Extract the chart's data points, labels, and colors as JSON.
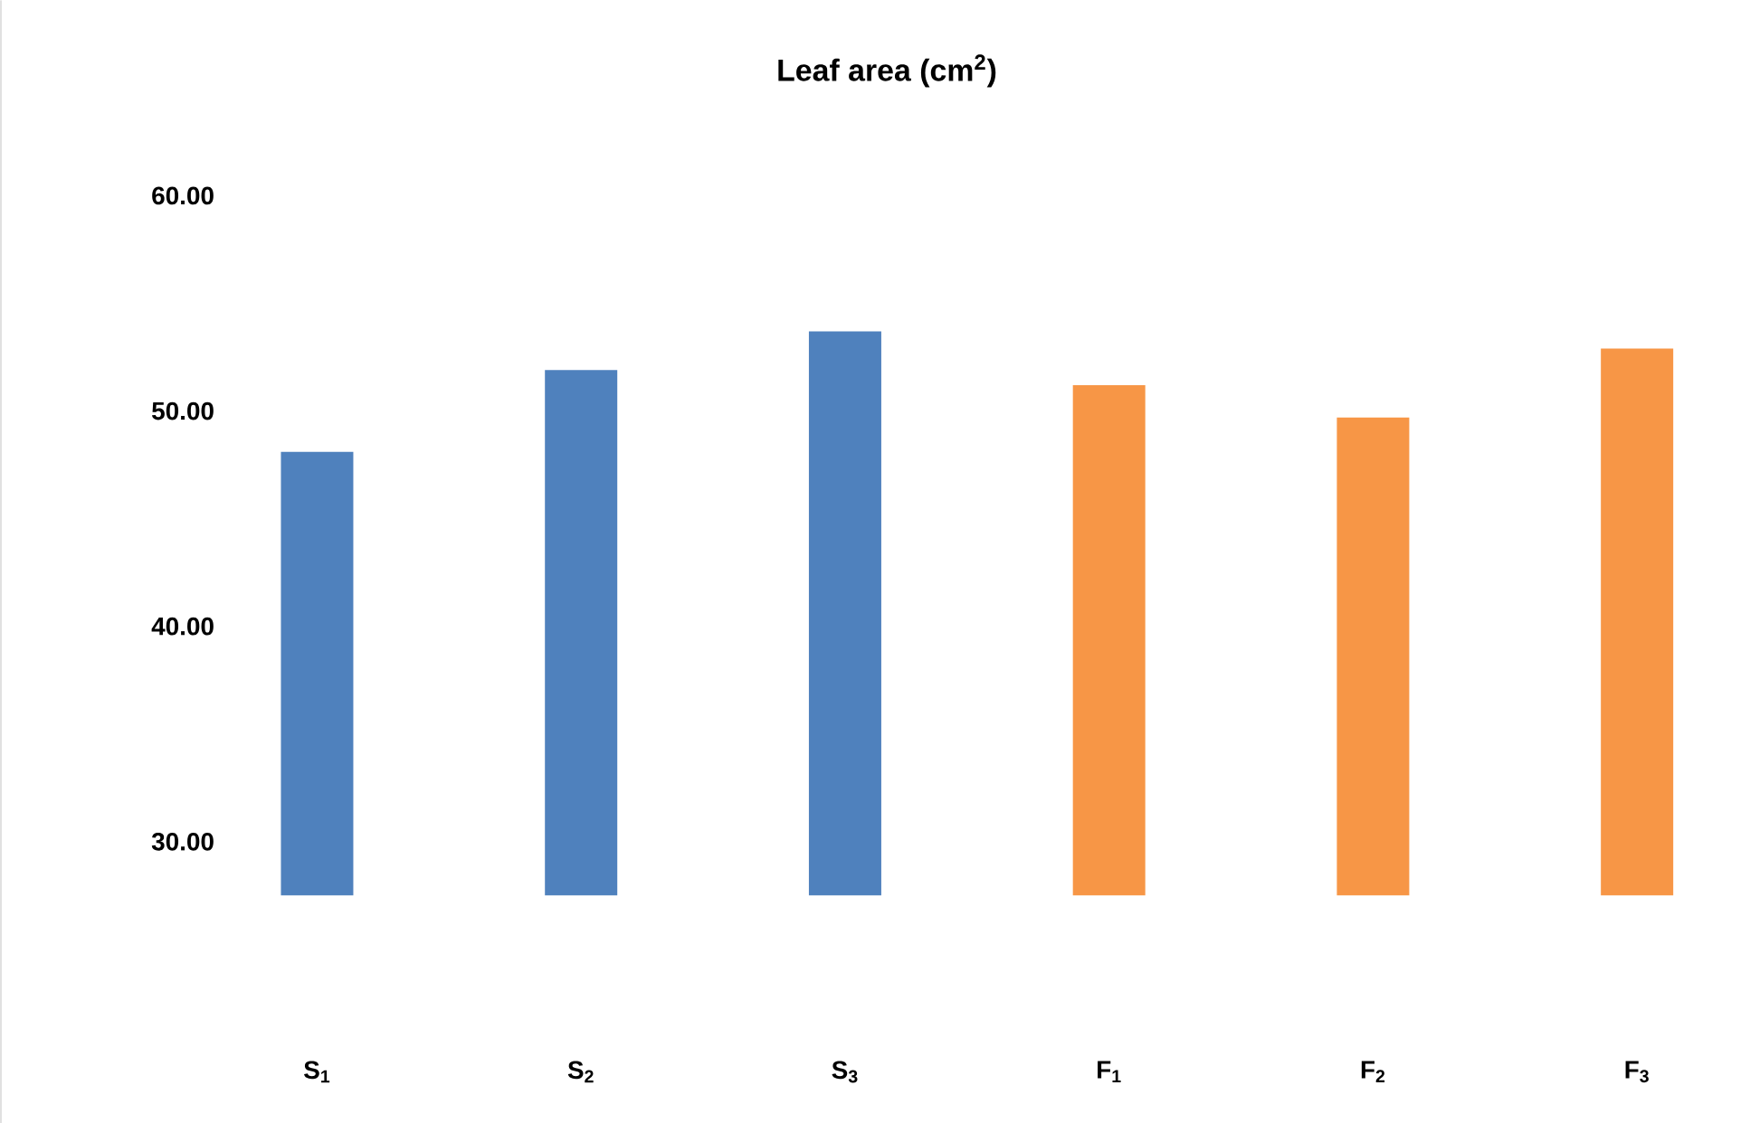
{
  "chart_data": {
    "type": "bar",
    "title": "Leaf area (cm$^{2}$)",
    "categories": [
      "S$_{1}$",
      "S$_{2}$",
      "S$_{3}$",
      "F$_{1}$",
      "F$_{2}$",
      "F$_{3}$"
    ],
    "values": [
      48.1,
      51.9,
      53.7,
      51.2,
      49.7,
      52.9
    ],
    "colors": [
      "#4f81bd",
      "#4f81bd",
      "#4f81bd",
      "#f79646",
      "#f79646",
      "#f79646"
    ],
    "ylim": [
      27.5,
      60
    ],
    "yticks": [
      {
        "value": 30,
        "label": "30.00"
      },
      {
        "value": 40,
        "label": "40.00"
      },
      {
        "value": 50,
        "label": "50.00"
      },
      {
        "value": 60,
        "label": "60.00"
      }
    ]
  }
}
